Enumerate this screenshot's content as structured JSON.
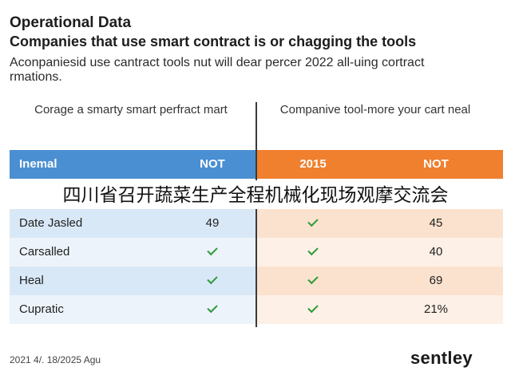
{
  "title": "Operational Data",
  "subtitle": "Companies that use smart contract is or chagging the tools",
  "intro": "Aconpaniesid use cantract tools nut will dear percer 2022 all-uing cortract rmations.",
  "columns": {
    "left_heading": "Corage a smarty smart perfract mart",
    "right_heading": "Companive tool-more your cart neal"
  },
  "table": {
    "header": [
      "Inemal",
      "NOT",
      "2015",
      "NOT"
    ],
    "rows": [
      {
        "name": "Date Jasled",
        "v1": "49",
        "v2": "check",
        "v3": "45"
      },
      {
        "name": "Carsalled",
        "v1": "check",
        "v2": "check",
        "v3": "40"
      },
      {
        "name": "Heal",
        "v1": "check",
        "v2": "check",
        "v3": "69"
      },
      {
        "name": "Cupratic",
        "v1": "check",
        "v2": "check",
        "v3": "21%"
      }
    ]
  },
  "banner": "四川省召开蔬菜生产全程机械化现场观摩交流会",
  "footer": {
    "date": "2021 4/. 18/2025 Agu",
    "logo": "sentley"
  },
  "colors": {
    "header_left": "#4a8fd2",
    "header_right": "#f07f2e",
    "check": "#2e9a3a"
  }
}
